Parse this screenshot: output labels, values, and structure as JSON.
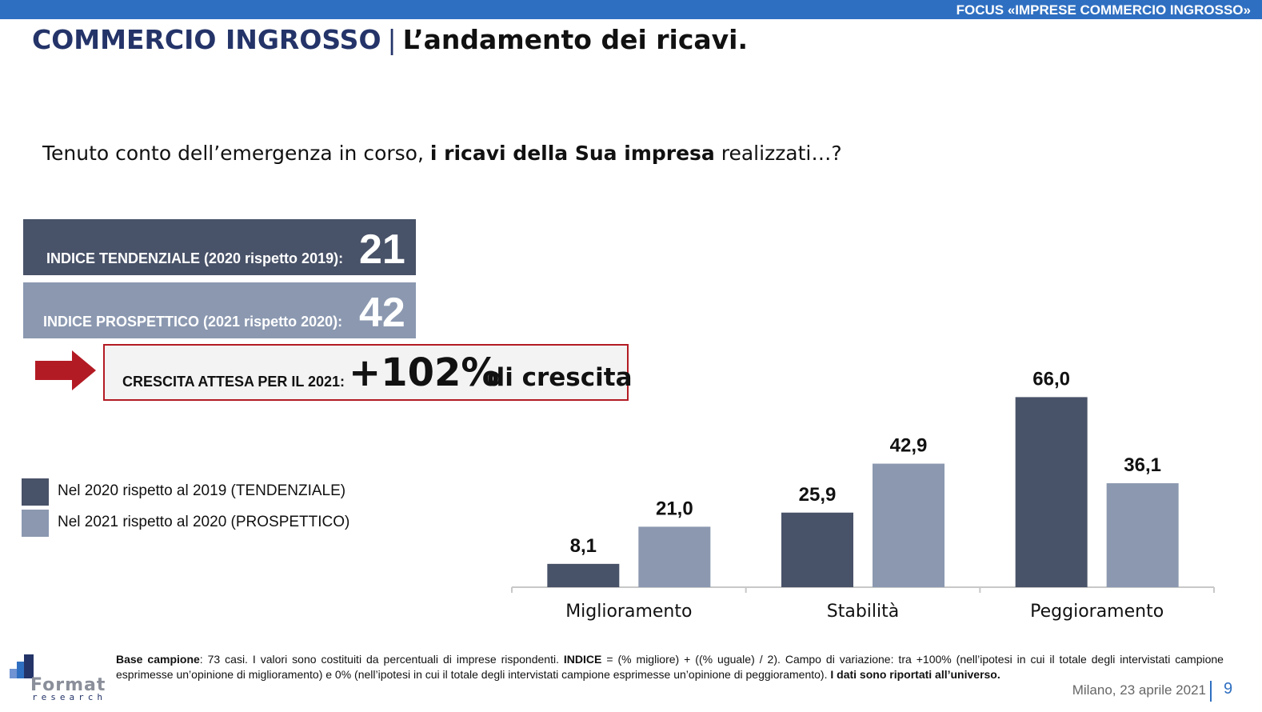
{
  "header": {
    "focus_label": "FOCUS «IMPRESE COMMERCIO INGROSSO»",
    "title_main": "COMMERCIO INGROSSO",
    "title_sep": "|",
    "title_sub": "L’andamento dei ricavi."
  },
  "question": {
    "part1": "Tenuto conto dell’emergenza in corso, ",
    "bold": "i ricavi della Sua impresa",
    "part2": " realizzati…?"
  },
  "indices": {
    "tendenziale_label": "INDICE TENDENZIALE (2020 rispetto 2019):",
    "tendenziale_value": "21",
    "prospettico_label": "INDICE PROSPETTICO (2021 rispetto 2020):",
    "prospettico_value": "42",
    "growth_label": "CRESCITA ATTESA PER IL 2021:",
    "growth_value": "+102%",
    "growth_suffix": "di crescita"
  },
  "colors": {
    "accent_blue": "#2f6fc1",
    "title_navy": "#243469",
    "series_dark": "#485268",
    "series_light": "#8b98b0",
    "arrow_red": "#b31b24"
  },
  "chart_data": {
    "type": "bar",
    "categories": [
      "Miglioramento",
      "Stabilità",
      "Peggioramento"
    ],
    "series": [
      {
        "name": "Nel 2020 rispetto al 2019 (TENDENZIALE)",
        "values": [
          8.1,
          25.9,
          66.0
        ],
        "labels": [
          "8,1",
          "25,9",
          "66,0"
        ],
        "color": "#485268"
      },
      {
        "name": "Nel 2021 rispetto al 2020 (PROSPETTICO)",
        "values": [
          21.0,
          42.9,
          36.1
        ],
        "labels": [
          "21,0",
          "42,9",
          "36,1"
        ],
        "color": "#8b98b0"
      }
    ],
    "ylim": [
      0,
      70
    ],
    "legend": "left",
    "grid": false
  },
  "footnote": {
    "base_label": "Base campione",
    "base_text": ": 73 casi. I valori sono costituiti da percentuali di imprese rispondenti. ",
    "indice_label": "INDICE",
    "indice_text": " = (% migliore) + ((% uguale) / 2). Campo di variazione: tra +100% (nell’ipotesi in cui il totale degli intervistati campione esprimesse un’opinione di miglioramento) e 0% (nell’ipotesi in cui il totale degli intervistati campione esprimesse un’opinione di peggioramento). ",
    "universe_text": "I dati sono riportati all’universo."
  },
  "footer": {
    "logo_word": "Format",
    "logo_sub": "research",
    "date": "Milano, 23 aprile 2021",
    "page": "9"
  }
}
